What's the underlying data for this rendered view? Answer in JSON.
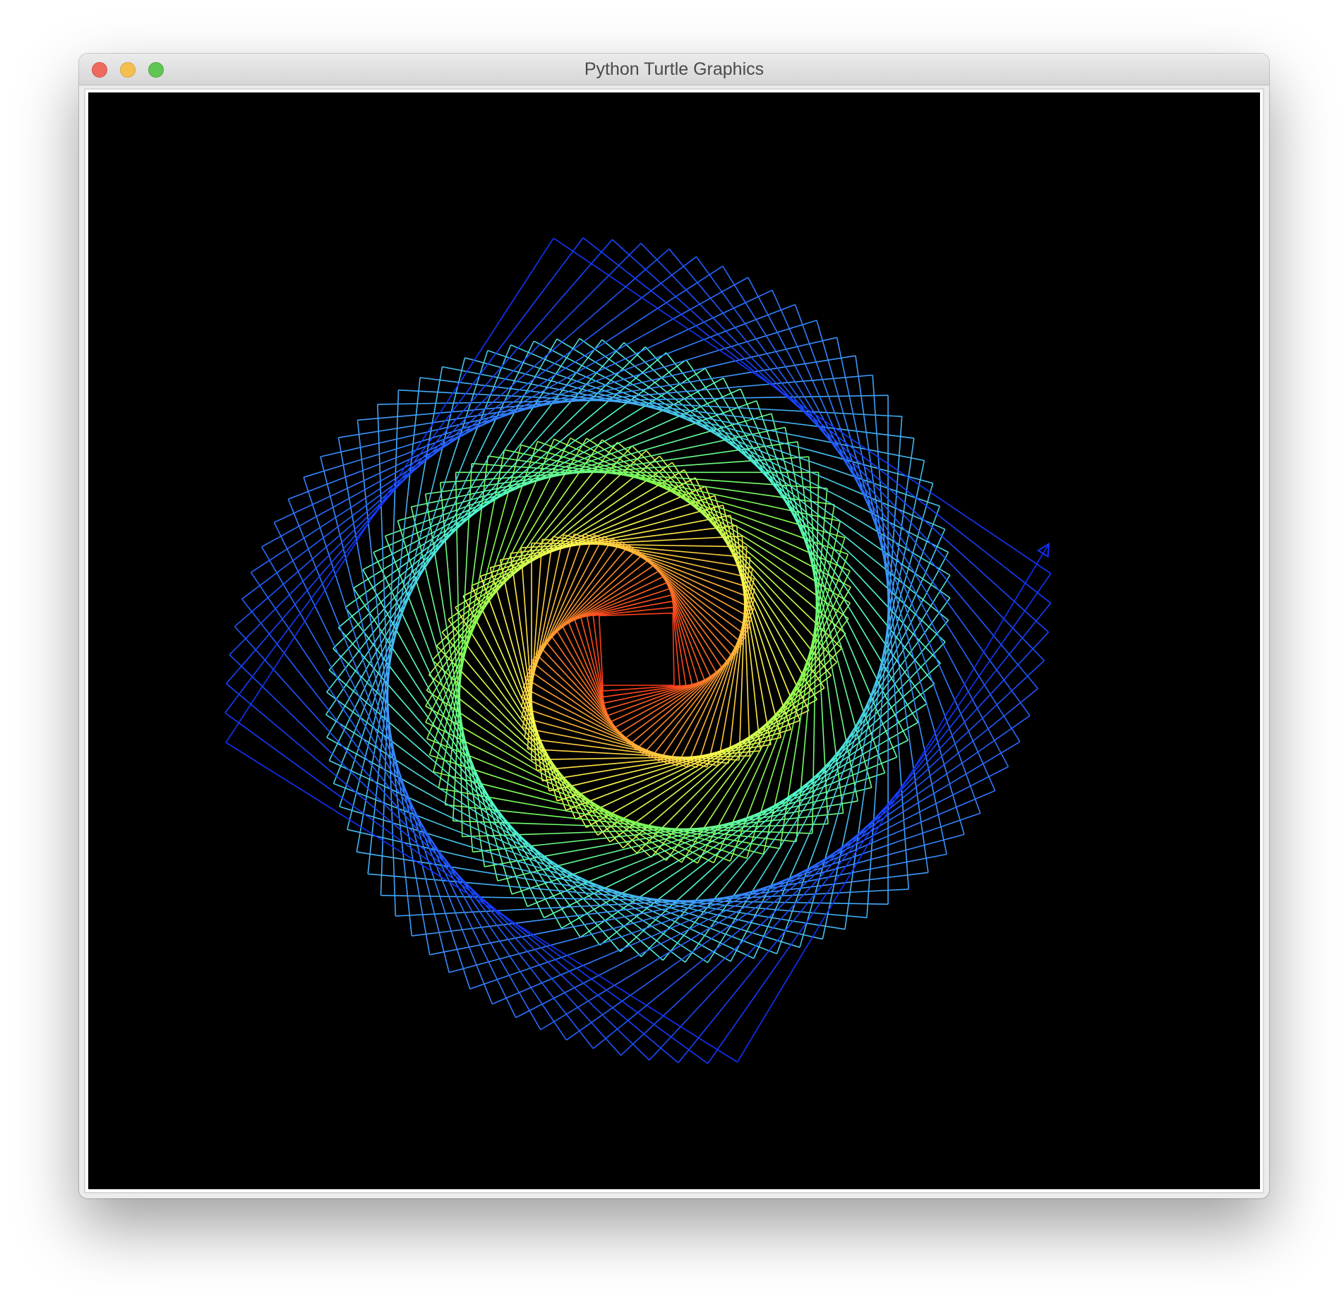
{
  "window": {
    "title": "Python Turtle Graphics"
  },
  "canvas": {
    "background_color": "#000000",
    "drawing": "rainbow-spiral-of-squares",
    "pen_shape": "arrow",
    "color_gradient_inner_to_outer": [
      "#ff3a1a",
      "#ff9a30",
      "#ffff50",
      "#80ff50",
      "#50ffd0",
      "#40a0ff",
      "#1030ff"
    ]
  },
  "traffic_lights": {
    "close_color": "#ed6a5e",
    "minimize_color": "#f5bf4f",
    "maximize_color": "#61c554"
  }
}
